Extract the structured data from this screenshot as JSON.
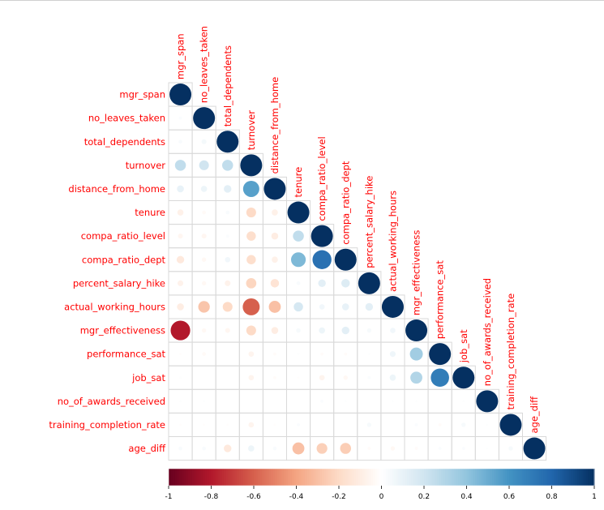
{
  "chart_data": {
    "type": "heatmap",
    "variant": "correlation-matrix-lower-triangle-circles",
    "variables": [
      "mgr_span",
      "no_leaves_taken",
      "total_dependents",
      "turnover",
      "distance_from_home",
      "tenure",
      "compa_ratio_level",
      "compa_ratio_dept",
      "percent_salary_hike",
      "actual_working_hours",
      "mgr_effectiveness",
      "performance_sat",
      "job_sat",
      "no_of_awards_received",
      "training_completion_rate",
      "age_diff"
    ],
    "matrix_lower": [
      [
        1
      ],
      [
        0.02,
        1
      ],
      [
        0.03,
        0.05,
        1
      ],
      [
        0.25,
        0.2,
        0.25,
        1
      ],
      [
        0.1,
        0.08,
        0.12,
        0.55,
        1
      ],
      [
        -0.08,
        -0.03,
        0.03,
        -0.2,
        -0.08,
        1
      ],
      [
        -0.05,
        -0.05,
        0.02,
        -0.18,
        -0.1,
        0.25,
        1
      ],
      [
        -0.12,
        -0.04,
        0.06,
        -0.18,
        -0.08,
        0.45,
        0.75,
        1
      ],
      [
        -0.07,
        -0.04,
        -0.07,
        -0.22,
        -0.15,
        0.03,
        0.12,
        0.15,
        1
      ],
      [
        -0.1,
        -0.28,
        -0.2,
        -0.6,
        -0.3,
        0.18,
        0.06,
        0.1,
        0.12,
        1
      ],
      [
        -0.8,
        -0.04,
        -0.05,
        -0.2,
        -0.1,
        0.04,
        0.08,
        0.12,
        0.04,
        0.06,
        1
      ],
      [
        -0.01,
        -0.03,
        0,
        -0.06,
        -0.02,
        0.01,
        -0.02,
        -0.02,
        0.01,
        0.07,
        0.35,
        1
      ],
      [
        0.01,
        0,
        0,
        -0.06,
        -0.02,
        -0.01,
        -0.06,
        -0.04,
        0.02,
        0.08,
        0.3,
        0.7,
        1
      ],
      [
        0.01,
        0.01,
        0,
        0,
        0,
        0,
        0.02,
        0.01,
        0,
        0.01,
        0.01,
        0,
        0.01,
        1
      ],
      [
        -0.01,
        -0.01,
        -0.01,
        -0.06,
        -0.01,
        0.02,
        0,
        0,
        0.04,
        0,
        0.02,
        -0.02,
        0.04,
        0.01,
        1
      ],
      [
        0.03,
        0.03,
        -0.12,
        0.08,
        0.03,
        -0.3,
        -0.24,
        -0.25,
        -0.02,
        -0.04,
        -0.02,
        0.02,
        0.02,
        0.01,
        0.04,
        1
      ]
    ],
    "colorbar_ticks": [
      "-1",
      "-0.8",
      "-0.6",
      "-0.4",
      "-0.2",
      "0",
      "0.2",
      "0.4",
      "0.6",
      "0.8",
      "1"
    ],
    "colorbar_range": [
      -1,
      1
    ],
    "color_scale": {
      "negative": "#67001f",
      "mid": "#ffffff",
      "positive": "#053061"
    },
    "label_color": "#ff0000",
    "grid": true
  }
}
